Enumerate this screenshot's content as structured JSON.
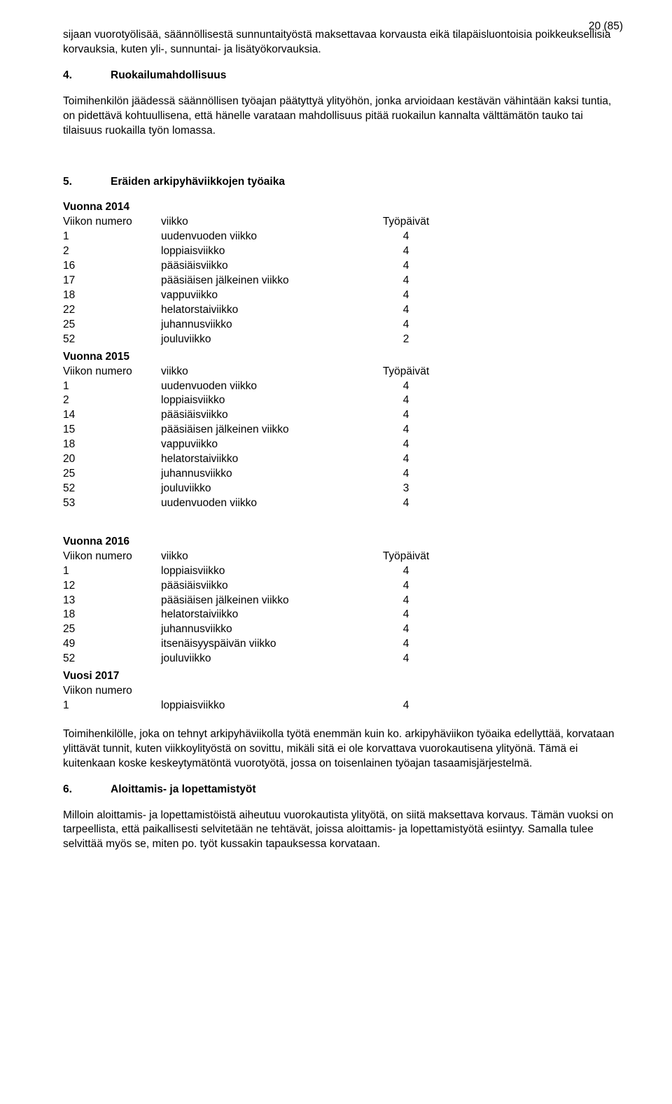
{
  "pageNumber": "20 (85)",
  "intro": "sijaan vuorotyölisää, säännöllisestä sunnuntaityöstä maksettavaa korvausta eikä tilapäisluontoisia poikkeuksellisia korvauksia, kuten yli-, sunnuntai- ja lisätyökorvauksia.",
  "s4": {
    "num": "4.",
    "title": "Ruokailumahdollisuus",
    "body": "Toimihenkilön jäädessä säännöllisen työajan päätyttyä ylityöhön, jonka arvioidaan kestävän vähintään kaksi tuntia, on pidettävä kohtuullisena, että hänelle varataan mahdollisuus pitää ruokailun kannalta välttämätön tauko tai tilaisuus ruokailla työn lomassa."
  },
  "s5": {
    "num": "5.",
    "title": "Eräiden arkipyhäviikkojen työaika",
    "colWeekNum": "Viikon numero",
    "colWeek": "viikko",
    "colDays": "Työpäivät",
    "y2014": {
      "label": "Vuonna 2014",
      "rows": [
        [
          "1",
          "uudenvuoden viikko",
          "4"
        ],
        [
          "2",
          "loppiaisviikko",
          "4"
        ],
        [
          "16",
          "pääsiäisviikko",
          "4"
        ],
        [
          "17",
          "pääsiäisen jälkeinen viikko",
          "4"
        ],
        [
          "18",
          "vappuviikko",
          "4"
        ],
        [
          "22",
          "helatorstaiviikko",
          "4"
        ],
        [
          "25",
          "juhannusviikko",
          "4"
        ],
        [
          "52",
          "jouluviikko",
          "2"
        ]
      ]
    },
    "y2015": {
      "label": "Vuonna 2015",
      "rows": [
        [
          "1",
          "uudenvuoden viikko",
          "4"
        ],
        [
          "2",
          "loppiaisviikko",
          "4"
        ],
        [
          "14",
          "pääsiäisviikko",
          "4"
        ],
        [
          "15",
          "pääsiäisen jälkeinen viikko",
          "4"
        ],
        [
          "18",
          "vappuviikko",
          "4"
        ],
        [
          "20",
          "helatorstaiviikko",
          "4"
        ],
        [
          "25",
          "juhannusviikko",
          "4"
        ],
        [
          "52",
          "jouluviikko",
          "3"
        ],
        [
          "53",
          "uudenvuoden viikko",
          "4"
        ]
      ]
    },
    "y2016": {
      "label": "Vuonna 2016",
      "rows": [
        [
          "1",
          "loppiaisviikko",
          "4"
        ],
        [
          "12",
          "pääsiäisviikko",
          "4"
        ],
        [
          "13",
          "pääsiäisen jälkeinen viikko",
          "4"
        ],
        [
          "18",
          "helatorstaiviikko",
          "4"
        ],
        [
          "25",
          "juhannusviikko",
          "4"
        ],
        [
          "49",
          "itsenäisyyspäivän viikko",
          "4"
        ],
        [
          "52",
          "jouluviikko",
          "4"
        ]
      ]
    },
    "y2017": {
      "label": "Vuosi 2017",
      "rows": [
        [
          "1",
          "loppiaisviikko",
          "4"
        ]
      ]
    },
    "footer": "Toimihenkilölle, joka on tehnyt arkipyhäviikolla työtä enemmän kuin ko. arkipyhäviikon työaika edellyttää, korvataan ylittävät tunnit, kuten viikkoylityöstä on sovittu, mikäli sitä ei ole korvattava vuorokautisena ylityönä. Tämä ei kuitenkaan koske keskeytymätöntä vuorotyötä, jossa on toisenlainen työajan tasaamisjärjestelmä."
  },
  "s6": {
    "num": "6.",
    "title": "Aloittamis- ja lopettamistyöt",
    "body": "Milloin aloittamis- ja lopettamistöistä aiheutuu vuorokautista ylityötä, on siitä maksettava korvaus. Tämän vuoksi on tarpeellista, että paikallisesti selvitetään ne tehtävät, joissa aloittamis- ja lopettamistyötä esiintyy. Samalla tulee selvittää myös se, miten po. työt kussakin tapauksessa korvataan."
  }
}
